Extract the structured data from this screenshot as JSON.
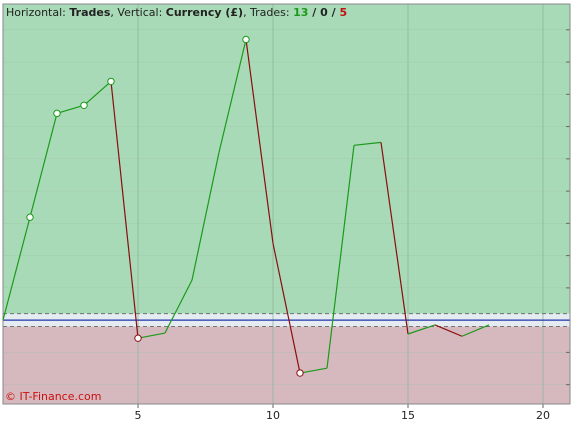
{
  "chart_data": {
    "type": "line",
    "title_parts": [
      "Horizontal: ",
      "Trades",
      ", Vertical: ",
      "Currency (£)",
      ", Trades: "
    ],
    "trades_won": 13,
    "trades_separator": " / ",
    "trades_even": 0,
    "trades_lost": 5,
    "watermark": "© IT-Finance.com",
    "x": [
      0,
      1,
      2,
      3,
      4,
      5,
      6,
      7,
      8,
      9,
      10,
      11,
      12,
      13,
      14,
      15,
      16,
      17,
      18
    ],
    "values": [
      0,
      3.19,
      6.41,
      6.66,
      7.4,
      -0.56,
      -0.4,
      1.24,
      5.2,
      8.7,
      2.38,
      -1.64,
      -1.49,
      5.42,
      5.51,
      -0.43,
      -0.15,
      -0.5,
      -0.15
    ],
    "marked_points": [
      1,
      2,
      3,
      4,
      5,
      9,
      11
    ],
    "up_color": "#1a9a1a",
    "down_color": "#8b0d0d",
    "xlim": [
      0,
      21
    ],
    "xticks": [
      5,
      10,
      15,
      20
    ],
    "ylim": [
      -2.6,
      9.8
    ],
    "yticks": [
      -2,
      -1,
      0,
      1,
      2,
      3,
      4,
      5,
      6,
      7,
      8,
      9
    ],
    "band": [
      -0.2,
      0.2
    ],
    "grid": true
  }
}
